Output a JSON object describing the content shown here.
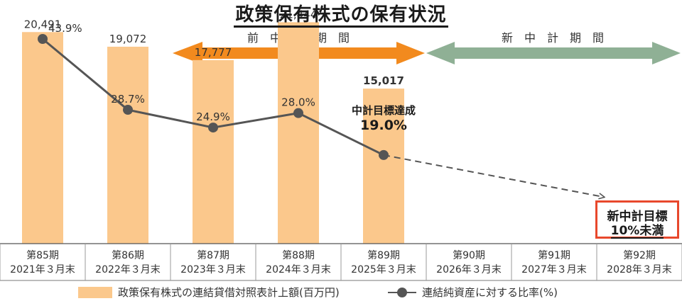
{
  "title": "政策保有株式の保有状況",
  "periods": {
    "previous_label": "前　中　計　期　間",
    "new_label": "新　中　計　期　間",
    "previous_color": "#f28a1e",
    "new_color": "#8fb095"
  },
  "annotation": {
    "line1": "中計目標達成",
    "line2": "19.0%"
  },
  "target_box": {
    "line1": "新中計目標",
    "line2": "10%未満",
    "border_color": "#e8482c"
  },
  "legend": {
    "bars": "政策保有株式の連結貸借対照表計上額(百万円)",
    "line": "連結純資産に対する比率(%)"
  },
  "chart_data": {
    "type": "bar",
    "categories": [
      "第85期\n2021年３月末",
      "第86期\n2022年３月末",
      "第87期\n2023年３月末",
      "第88期\n2024年３月末",
      "第89期\n2025年３月末",
      "第90期\n2026年３月末",
      "第91期\n2027年３月末",
      "第92期\n2028年３月末"
    ],
    "series": [
      {
        "name": "政策保有株式の連結貸借対照表計上額(百万円)",
        "type": "bar",
        "values": [
          20491,
          19072,
          17777,
          21444,
          15017,
          null,
          null,
          null
        ],
        "labels": [
          "20,491",
          "19,072",
          "17,777",
          "21,444",
          "15,017",
          "",
          "",
          ""
        ],
        "color": "#fbc88c"
      },
      {
        "name": "連結純資産に対する比率(%)",
        "type": "line",
        "values": [
          43.9,
          28.7,
          24.9,
          28.0,
          19.0,
          null,
          null,
          null
        ],
        "labels": [
          "43.9%",
          "28.7%",
          "24.9%",
          "28.0%",
          "",
          "",
          "",
          ""
        ],
        "color": "#555555",
        "target": 10
      }
    ],
    "ylim_bars": [
      0,
      28000
    ],
    "ylim_line": [
      0,
      48
    ],
    "legend_position": "bottom"
  }
}
